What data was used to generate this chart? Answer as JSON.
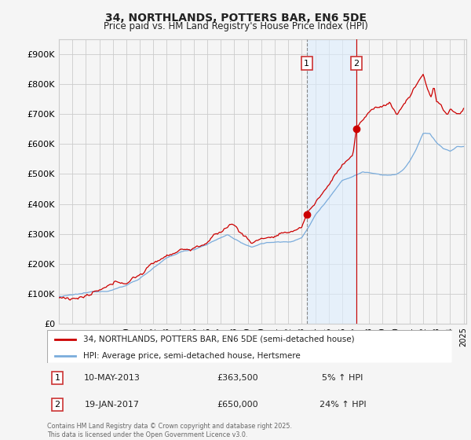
{
  "title": "34, NORTHLANDS, POTTERS BAR, EN6 5DE",
  "subtitle": "Price paid vs. HM Land Registry's House Price Index (HPI)",
  "red_label": "34, NORTHLANDS, POTTERS BAR, EN6 5DE (semi-detached house)",
  "blue_label": "HPI: Average price, semi-detached house, Hertsmere",
  "annotation1": {
    "label": "1",
    "date": "10-MAY-2013",
    "price": 363500,
    "pct": "5% ↑ HPI"
  },
  "annotation2": {
    "label": "2",
    "date": "19-JAN-2017",
    "price": 650000,
    "pct": "24% ↑ HPI"
  },
  "footnote": "Contains HM Land Registry data © Crown copyright and database right 2025.\nThis data is licensed under the Open Government Licence v3.0.",
  "ylim": [
    0,
    950000
  ],
  "yticks": [
    0,
    100000,
    200000,
    300000,
    400000,
    500000,
    600000,
    700000,
    800000,
    900000
  ],
  "background_color": "#f5f5f5",
  "grid_color": "#cccccc",
  "red_color": "#cc0000",
  "blue_color": "#7aacdc",
  "shading_color": "#ddeeff",
  "sale1_year": 2013.37,
  "sale2_year": 2017.04,
  "sale1_price": 363500,
  "sale2_price": 650000
}
